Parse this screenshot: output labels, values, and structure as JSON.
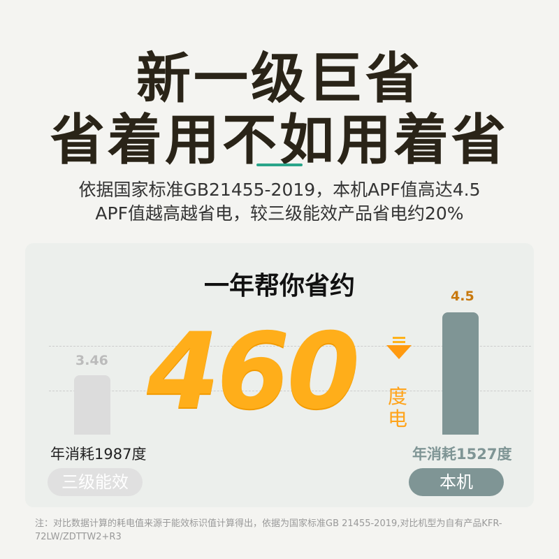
{
  "headline": {
    "line1": "新一级巨省",
    "line2": "省着用不如用着省"
  },
  "subtitle": {
    "line1": "依据国家标准GB21455-2019，本机APF值高达4.5",
    "line2": "APF值越高越省电，较三级能效产品省电约20%"
  },
  "card": {
    "title": "一年帮你省约",
    "savings_value": "460",
    "savings_unit": "度电",
    "arrow_icon": "down-arrow-icon",
    "left": {
      "apf": "3.46",
      "consumption": "年消耗1987度",
      "label": "三级能效",
      "bar_color": "#dcdcdc"
    },
    "right": {
      "apf": "4.5",
      "consumption": "年消耗1527度",
      "label": "本机",
      "bar_color": "#7f9595"
    }
  },
  "note": "注：对比数据计算的耗电值来源于能效标识值计算得出，依据为国家标准GB 21455-2019,对比机型为自有产品KFR-72LW/ZDTTW2+R3",
  "colors": {
    "accent": "#2aa58a",
    "orange": "#ffae1a",
    "apf_label": "#c8780c"
  }
}
